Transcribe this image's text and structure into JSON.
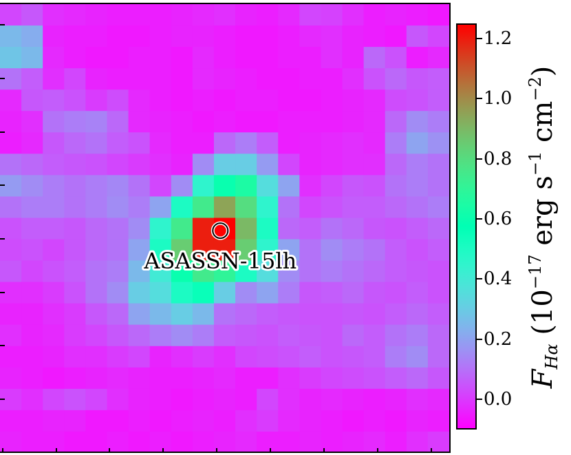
{
  "chart_data": {
    "type": "heatmap",
    "title": "",
    "xlabel": "",
    "ylabel": "",
    "colormap": "rainbow",
    "vmin": -0.1,
    "vmax": 1.25,
    "colorbar": {
      "label_main": "F",
      "label_sub": "Hα",
      "label_units_open": " (10",
      "label_exp1": "−17",
      "label_units_mid": " erg s",
      "label_exp2": "−1",
      "label_units_cm": " cm",
      "label_exp3": "−2",
      "label_units_close": ")",
      "ticks": [
        {
          "value": 1.2,
          "label": "1.2"
        },
        {
          "value": 1.0,
          "label": "1.0"
        },
        {
          "value": 0.8,
          "label": "0.8"
        },
        {
          "value": 0.6,
          "label": "0.6"
        },
        {
          "value": 0.4,
          "label": "0.4"
        },
        {
          "value": 0.2,
          "label": "0.2"
        },
        {
          "value": 0.0,
          "label": "0.0"
        }
      ]
    },
    "annotation": {
      "label": "ASASSN-15lh",
      "marker": "circle",
      "col": 10.3,
      "row": 10.6
    },
    "grid": [
      [
        0.02,
        0.05,
        -0.02,
        -0.03,
        -0.04,
        -0.05,
        -0.05,
        -0.05,
        -0.04,
        -0.03,
        -0.02,
        -0.04,
        -0.05,
        -0.03,
        0.02,
        0.01,
        -0.02,
        -0.05,
        -0.04,
        -0.05,
        -0.06
      ],
      [
        0.25,
        0.22,
        -0.04,
        -0.05,
        -0.05,
        -0.06,
        -0.06,
        -0.05,
        -0.04,
        -0.04,
        -0.05,
        -0.06,
        -0.06,
        -0.05,
        -0.03,
        -0.02,
        -0.04,
        -0.05,
        -0.06,
        0.05,
        0.02
      ],
      [
        0.28,
        0.25,
        -0.03,
        -0.05,
        -0.06,
        -0.06,
        -0.05,
        -0.05,
        -0.06,
        -0.03,
        -0.05,
        -0.06,
        -0.06,
        -0.05,
        -0.05,
        -0.02,
        -0.04,
        0.08,
        0.04,
        -0.05,
        -0.03
      ],
      [
        0.1,
        0.06,
        -0.02,
        0.02,
        -0.04,
        -0.05,
        -0.05,
        -0.05,
        -0.06,
        -0.03,
        -0.04,
        -0.05,
        -0.06,
        -0.06,
        -0.05,
        -0.05,
        -0.02,
        0.04,
        0.08,
        0.05,
        0.06
      ],
      [
        -0.03,
        0.05,
        0.06,
        0.04,
        0.0,
        0.03,
        -0.03,
        -0.05,
        -0.06,
        -0.05,
        -0.06,
        -0.05,
        -0.05,
        -0.06,
        -0.06,
        -0.05,
        -0.04,
        -0.03,
        0.03,
        0.04,
        0.06
      ],
      [
        -0.04,
        -0.02,
        0.1,
        0.12,
        0.13,
        0.08,
        -0.03,
        -0.04,
        -0.05,
        -0.06,
        -0.05,
        -0.06,
        -0.06,
        -0.05,
        -0.05,
        -0.05,
        -0.04,
        -0.03,
        0.08,
        0.15,
        0.12
      ],
      [
        -0.05,
        -0.03,
        0.05,
        0.08,
        0.1,
        0.06,
        0.04,
        -0.03,
        -0.05,
        -0.05,
        0.08,
        0.12,
        0.06,
        -0.05,
        -0.04,
        -0.03,
        -0.02,
        -0.03,
        0.12,
        0.2,
        0.16
      ],
      [
        0.1,
        0.08,
        0.06,
        0.05,
        0.04,
        0.02,
        0.0,
        -0.02,
        -0.04,
        0.15,
        0.3,
        0.3,
        0.18,
        0.02,
        -0.04,
        -0.03,
        -0.02,
        -0.02,
        0.08,
        0.12,
        0.1
      ],
      [
        0.18,
        0.15,
        0.12,
        0.1,
        0.12,
        0.14,
        0.1,
        0.02,
        0.15,
        0.45,
        0.6,
        0.65,
        0.35,
        0.2,
        -0.02,
        0.02,
        0.05,
        0.04,
        0.1,
        0.12,
        0.1
      ],
      [
        0.1,
        0.12,
        0.12,
        0.1,
        0.12,
        0.15,
        0.12,
        0.2,
        0.5,
        0.75,
        0.95,
        0.8,
        0.45,
        0.1,
        0.02,
        0.04,
        0.06,
        0.06,
        0.08,
        0.1,
        0.12
      ],
      [
        0.04,
        0.06,
        0.06,
        0.05,
        0.08,
        0.1,
        0.15,
        0.45,
        0.75,
        1.2,
        1.25,
        0.9,
        0.5,
        0.08,
        0.06,
        0.1,
        0.08,
        0.05,
        0.04,
        0.06,
        0.08
      ],
      [
        0.03,
        0.04,
        0.02,
        0.05,
        0.08,
        0.1,
        0.2,
        0.5,
        0.85,
        1.2,
        1.2,
        0.85,
        0.45,
        0.2,
        0.1,
        0.15,
        0.12,
        0.1,
        0.06,
        0.04,
        0.06
      ],
      [
        0.05,
        0.02,
        0.04,
        0.06,
        0.1,
        0.12,
        0.25,
        0.4,
        0.6,
        0.75,
        0.7,
        0.5,
        0.35,
        0.15,
        0.1,
        0.12,
        0.1,
        0.08,
        0.06,
        0.05,
        0.04
      ],
      [
        -0.02,
        -0.02,
        0.0,
        0.04,
        0.1,
        0.15,
        0.3,
        0.35,
        0.5,
        0.55,
        0.3,
        0.15,
        0.2,
        0.12,
        0.05,
        0.06,
        0.08,
        0.05,
        0.04,
        0.06,
        0.04
      ],
      [
        -0.04,
        -0.04,
        -0.02,
        0.0,
        0.05,
        0.08,
        0.2,
        0.25,
        0.3,
        0.25,
        0.1,
        0.08,
        0.06,
        0.05,
        0.04,
        0.04,
        0.05,
        0.04,
        0.06,
        0.08,
        0.06
      ],
      [
        -0.02,
        -0.04,
        -0.03,
        0.0,
        0.02,
        0.05,
        0.08,
        0.12,
        0.15,
        0.12,
        0.06,
        0.05,
        0.04,
        0.06,
        0.05,
        0.04,
        0.08,
        0.06,
        0.1,
        0.12,
        0.08
      ],
      [
        -0.05,
        -0.05,
        -0.04,
        -0.02,
        -0.02,
        0.0,
        0.02,
        -0.04,
        -0.02,
        0.0,
        -0.02,
        0.02,
        0.03,
        0.04,
        0.06,
        0.04,
        0.05,
        0.06,
        0.12,
        0.15,
        0.08
      ],
      [
        -0.04,
        -0.05,
        -0.06,
        -0.05,
        -0.04,
        -0.03,
        -0.04,
        -0.05,
        -0.05,
        -0.04,
        -0.03,
        -0.05,
        -0.05,
        -0.02,
        0.0,
        0.02,
        0.03,
        0.04,
        0.06,
        0.08,
        0.05
      ],
      [
        0.0,
        -0.02,
        0.02,
        0.04,
        0.02,
        -0.02,
        -0.04,
        -0.05,
        -0.06,
        -0.05,
        -0.04,
        -0.05,
        0.02,
        -0.02,
        -0.04,
        -0.03,
        -0.04,
        -0.05,
        -0.04,
        -0.02,
        -0.03
      ],
      [
        -0.05,
        -0.05,
        -0.04,
        -0.04,
        -0.06,
        -0.06,
        -0.05,
        -0.06,
        -0.05,
        -0.04,
        -0.05,
        -0.02,
        0.0,
        -0.03,
        -0.04,
        -0.05,
        -0.06,
        -0.05,
        -0.06,
        -0.04,
        -0.05
      ],
      [
        -0.04,
        -0.05,
        -0.05,
        -0.06,
        -0.06,
        -0.05,
        -0.06,
        -0.05,
        -0.06,
        -0.05,
        -0.04,
        -0.03,
        -0.05,
        -0.05,
        -0.04,
        -0.05,
        -0.04,
        -0.03,
        -0.05,
        -0.02,
        0.0
      ]
    ]
  }
}
